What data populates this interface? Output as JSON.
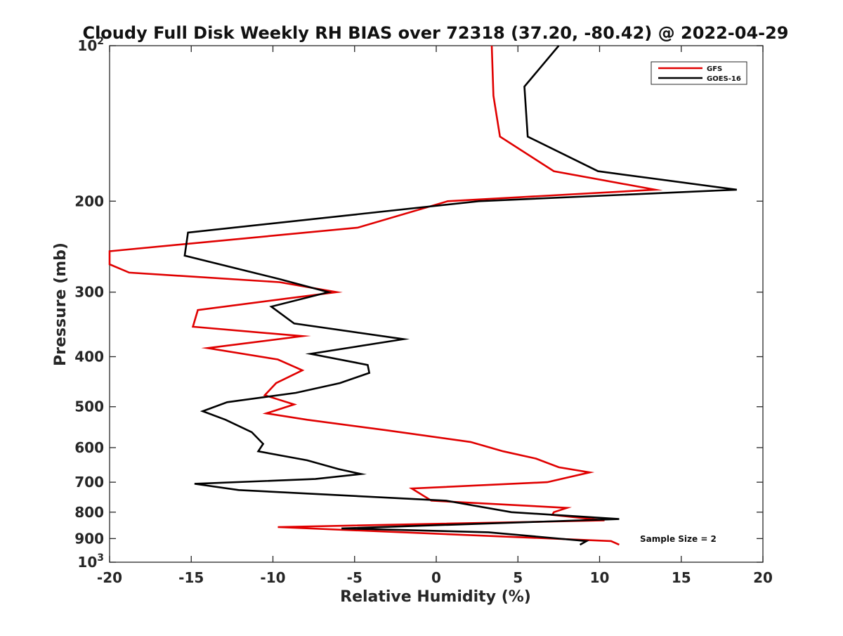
{
  "chart_data": {
    "type": "line",
    "title": "Cloudy Full Disk Weekly RH BIAS over 72318 (37.20, -80.42) @ 2022-04-29",
    "xlabel": "Relative Humidity (%)",
    "ylabel": "Pressure (mb)",
    "xlim": [
      -20,
      20
    ],
    "ylim": [
      100,
      1000
    ],
    "yscale": "log",
    "y_reversed": true,
    "xticks": [
      -20,
      -15,
      -10,
      -5,
      0,
      5,
      10,
      15,
      20
    ],
    "xtick_labels": [
      "-20",
      "-15",
      "-10",
      "-5",
      "0",
      "5",
      "10",
      "15",
      "20"
    ],
    "yticks": [
      100,
      200,
      300,
      400,
      500,
      600,
      700,
      800,
      900,
      1000
    ],
    "ytick_labels": [
      {
        "base": "10",
        "exp": "2"
      },
      {
        "base": "200",
        "exp": ""
      },
      {
        "base": "300",
        "exp": ""
      },
      {
        "base": "400",
        "exp": ""
      },
      {
        "base": "500",
        "exp": ""
      },
      {
        "base": "600",
        "exp": ""
      },
      {
        "base": "700",
        "exp": ""
      },
      {
        "base": "800",
        "exp": ""
      },
      {
        "base": "900",
        "exp": ""
      },
      {
        "base": "10",
        "exp": "3"
      }
    ],
    "grid": false,
    "legend_position": "top-right",
    "annotation": "Sample Size = 2",
    "series": [
      {
        "name": "GFS",
        "color": "#e00000",
        "x": [
          3.4,
          3.5,
          3.9,
          7.2,
          13.4,
          0.7,
          -4.8,
          -20.0,
          -20.0,
          -18.8,
          -9.6,
          -6.1,
          -14.6,
          -14.9,
          -8.2,
          -14.0,
          -9.7,
          -8.2,
          -9.8,
          -10.5,
          -8.7,
          -10.4,
          -7.9,
          -3.1,
          2.1,
          4.1,
          6.1,
          7.5,
          9.4,
          6.8,
          -1.5,
          -0.3,
          8.0,
          7.2,
          7.1,
          10.3,
          -9.7,
          10.7,
          11.2
        ],
        "y": [
          100,
          125,
          150,
          175,
          190,
          200,
          225,
          250,
          265,
          275,
          287,
          300,
          325,
          350,
          365,
          385,
          405,
          425,
          450,
          475,
          495,
          515,
          530,
          555,
          585,
          610,
          630,
          655,
          670,
          700,
          720,
          760,
          785,
          800,
          810,
          830,
          855,
          910,
          925
        ]
      },
      {
        "name": "GOES-16",
        "color": "#000000",
        "x": [
          7.5,
          5.4,
          5.6,
          9.9,
          18.4,
          2.6,
          -15.2,
          -15.4,
          -9.6,
          -6.6,
          -10.1,
          -8.7,
          -2.0,
          -7.7,
          -4.2,
          -4.1,
          -5.9,
          -8.6,
          -12.8,
          -14.3,
          -12.9,
          -11.3,
          -10.6,
          -10.9,
          -7.9,
          -6.0,
          -4.6,
          -7.4,
          -14.8,
          -12.1,
          0.6,
          4.6,
          11.2,
          -5.8,
          3.2,
          9.2,
          8.8
        ],
        "y": [
          100,
          120,
          150,
          175,
          190,
          200,
          230,
          255,
          283,
          300,
          320,
          345,
          370,
          395,
          415,
          430,
          450,
          470,
          490,
          510,
          530,
          560,
          590,
          610,
          635,
          660,
          675,
          690,
          705,
          725,
          760,
          800,
          825,
          860,
          875,
          910,
          925
        ]
      }
    ]
  }
}
